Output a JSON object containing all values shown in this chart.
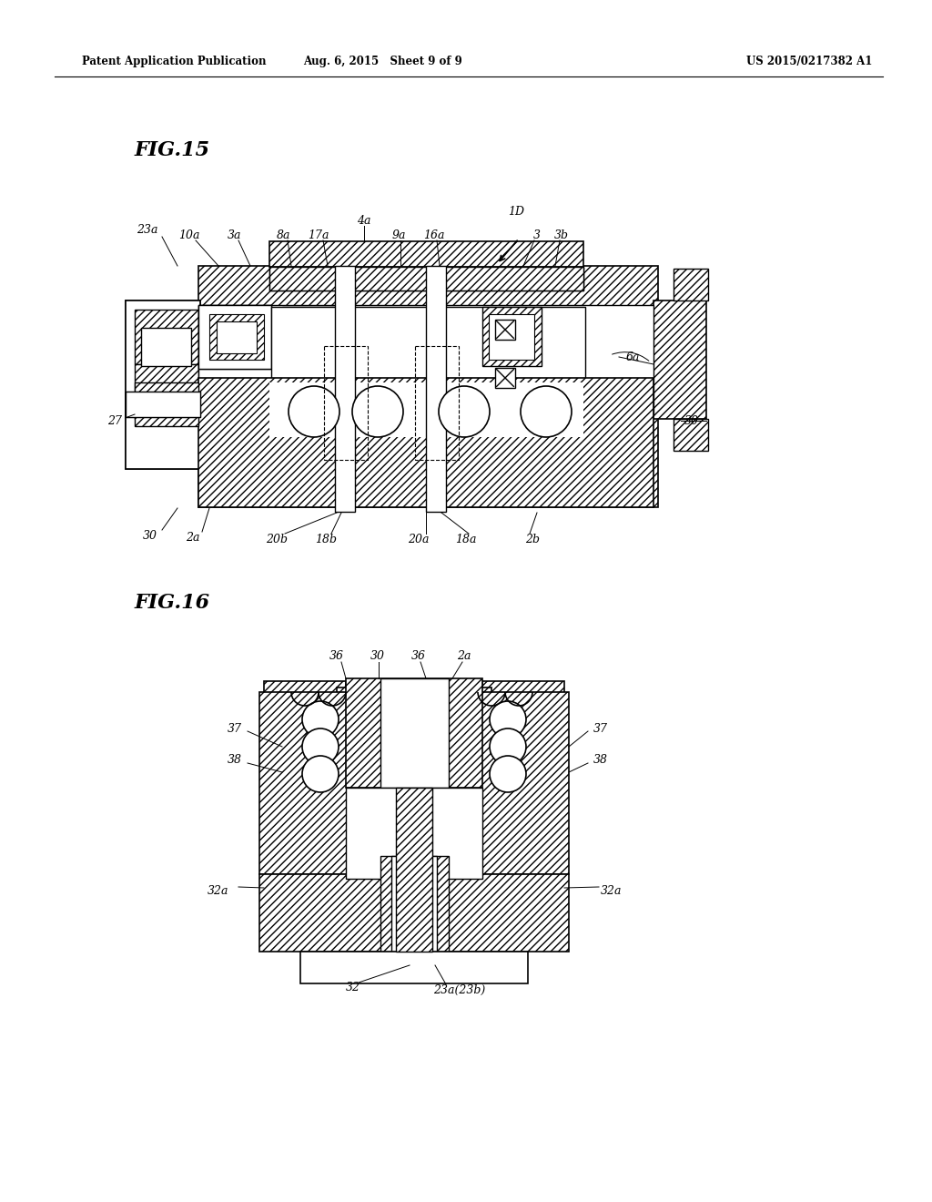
{
  "header_left": "Patent Application Publication",
  "header_mid": "Aug. 6, 2015   Sheet 9 of 9",
  "header_right": "US 2015/0217382 A1",
  "fig15_label": "FIG.15",
  "fig16_label": "FIG.16",
  "background": "#ffffff"
}
